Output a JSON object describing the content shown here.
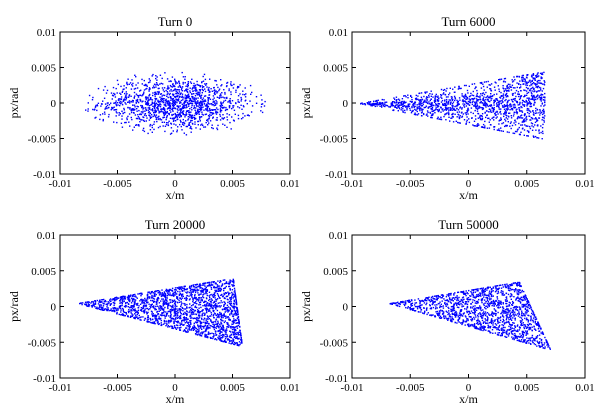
{
  "chart_data": [
    {
      "type": "scatter",
      "title": "Turn 0",
      "xlabel": "x/m",
      "ylabel": "px/rad",
      "xlim": [
        -0.01,
        0.01
      ],
      "ylim": [
        -0.01,
        0.01
      ],
      "x_ticks": [
        "-0.01",
        "-0.005",
        "0",
        "0.005",
        "0.01"
      ],
      "y_ticks": [
        "0.01",
        "0.005",
        "0",
        "-0.005",
        "-0.01"
      ],
      "grid": false,
      "color": "#0000ff",
      "distribution": {
        "shape": "ellipse",
        "x_range": [
          -0.0075,
          0.0085
        ],
        "y_range": [
          -0.0045,
          0.0045
        ],
        "center": [
          0.0,
          0.0
        ]
      }
    },
    {
      "type": "scatter",
      "title": "Turn 6000",
      "xlabel": "x/m",
      "ylabel": "px/rad",
      "xlim": [
        -0.01,
        0.01
      ],
      "ylim": [
        -0.01,
        0.01
      ],
      "x_ticks": [
        "-0.01",
        "-0.005",
        "0",
        "0.005",
        "0.01"
      ],
      "y_ticks": [
        "0.01",
        "0.005",
        "0",
        "-0.005",
        "-0.01"
      ],
      "grid": false,
      "color": "#0000ff",
      "distribution": {
        "shape": "tapered-wedge",
        "x_range": [
          -0.0095,
          0.0065
        ],
        "y_range": [
          -0.005,
          0.005
        ],
        "tip": [
          -0.0095,
          0.0
        ],
        "right_edge_y": [
          -0.005,
          0.0045
        ]
      }
    },
    {
      "type": "scatter",
      "title": "Turn 20000",
      "xlabel": "x/m",
      "ylabel": "px/rad",
      "xlim": [
        -0.01,
        0.01
      ],
      "ylim": [
        -0.01,
        0.01
      ],
      "x_ticks": [
        "-0.01",
        "-0.005",
        "0",
        "0.005",
        "0.01"
      ],
      "y_ticks": [
        "0.01",
        "0.005",
        "0",
        "-0.005",
        "-0.01"
      ],
      "grid": false,
      "color": "#0000ff",
      "distribution": {
        "shape": "triangle",
        "x_range": [
          -0.0085,
          0.0058
        ],
        "y_range": [
          -0.0055,
          0.0042
        ],
        "vertices": [
          [
            -0.0085,
            0.0005
          ],
          [
            0.005,
            0.004
          ],
          [
            0.0058,
            -0.0055
          ]
        ]
      }
    },
    {
      "type": "scatter",
      "title": "Turn 50000",
      "xlabel": "x/m",
      "ylabel": "px/rad",
      "xlim": [
        -0.01,
        0.01
      ],
      "ylim": [
        -0.01,
        0.01
      ],
      "x_ticks": [
        "-0.01",
        "-0.005",
        "0",
        "0.005",
        "0.01"
      ],
      "y_ticks": [
        "0.01",
        "0.005",
        "0",
        "-0.005",
        "-0.01"
      ],
      "grid": false,
      "color": "#0000ff",
      "distribution": {
        "shape": "triangle",
        "x_range": [
          -0.0068,
          0.007
        ],
        "y_range": [
          -0.006,
          0.0038
        ],
        "vertices": [
          [
            -0.0068,
            0.0005
          ],
          [
            0.0043,
            0.0035
          ],
          [
            0.007,
            -0.006
          ]
        ]
      }
    }
  ]
}
